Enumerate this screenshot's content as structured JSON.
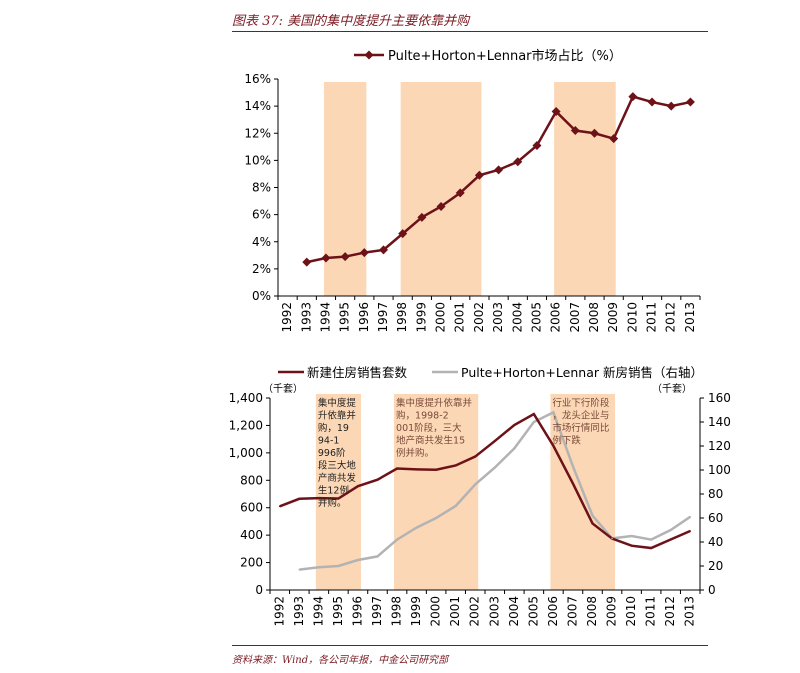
{
  "title": "图表 37: 美国的集中度提升主要依靠并购",
  "source": "资料来源：Wind，各公司年报，中金公司研究部",
  "colors": {
    "dark_red": "#6d1218",
    "light_series": "#b3b3b3",
    "shade": "#fbd7b5",
    "rule": "#7a1a22"
  },
  "chart_data": [
    {
      "type": "line",
      "legend_position": "top",
      "x": [
        "1992",
        "1993",
        "1994",
        "1995",
        "1996",
        "1997",
        "1998",
        "1999",
        "2000",
        "2001",
        "2002",
        "2003",
        "2004",
        "2005",
        "2006",
        "2007",
        "2008",
        "2009",
        "2010",
        "2011",
        "2012",
        "2013"
      ],
      "series": [
        {
          "name": "Pulte+Horton+Lennar市场占比（%）",
          "values": [
            null,
            2.5,
            2.8,
            2.9,
            3.2,
            3.4,
            4.6,
            5.8,
            6.6,
            7.6,
            8.9,
            9.3,
            9.9,
            11.1,
            13.6,
            12.2,
            12.0,
            11.6,
            14.7,
            14.3,
            14.0,
            14.3
          ]
        }
      ],
      "y_ticks": [
        "0%",
        "2%",
        "4%",
        "6%",
        "8%",
        "10%",
        "12%",
        "14%",
        "16%"
      ],
      "ylim": [
        0,
        16
      ],
      "shaded_ranges": [
        [
          "1994",
          "1996"
        ],
        [
          "1998",
          "2002"
        ],
        [
          "2006",
          "2009"
        ]
      ],
      "grid": false
    },
    {
      "type": "line",
      "legend_position": "top",
      "x": [
        "1992",
        "1993",
        "1994",
        "1995",
        "1996",
        "1997",
        "1998",
        "1999",
        "2000",
        "2001",
        "2002",
        "2003",
        "2004",
        "2005",
        "2006",
        "2007",
        "2008",
        "2009",
        "2010",
        "2011",
        "2012",
        "2013"
      ],
      "series": [
        {
          "name": "新建住房销售套数",
          "axis": "left",
          "values": [
            610,
            665,
            670,
            667,
            757,
            804,
            886,
            880,
            877,
            908,
            973,
            1086,
            1203,
            1283,
            1051,
            776,
            485,
            375,
            323,
            306,
            368,
            430
          ]
        },
        {
          "name": "Pulte+Horton+Lennar 新房销售（右轴）",
          "axis": "right",
          "values": [
            null,
            17,
            19,
            20,
            25,
            28,
            42,
            52,
            60,
            70,
            88,
            102,
            118,
            140,
            148,
            103,
            62,
            43,
            45,
            42,
            50,
            61
          ]
        }
      ],
      "y_left_unit": "（千套）",
      "y_right_unit": "（千套）",
      "y_left_ticks": [
        "0",
        "200",
        "400",
        "600",
        "800",
        "1,000",
        "1,200",
        "1,400"
      ],
      "ylim_left": [
        0,
        1400
      ],
      "y_right_ticks": [
        "0",
        "20",
        "40",
        "60",
        "80",
        "100",
        "120",
        "140",
        "160"
      ],
      "ylim_right": [
        0,
        160
      ],
      "shaded_ranges": [
        [
          "1994",
          "1996"
        ],
        [
          "1998",
          "2002"
        ],
        [
          "2006",
          "2009"
        ]
      ],
      "annotations": [
        "集中度提升依靠并购，1994-1996阶段三大地产商共发生12例并购。",
        "集中度提升依靠并购，1998-2001阶段，三大地产商共发生15例并购。",
        "行业下行阶段，龙头企业与市场行情同比例下跌"
      ],
      "grid": false
    }
  ]
}
